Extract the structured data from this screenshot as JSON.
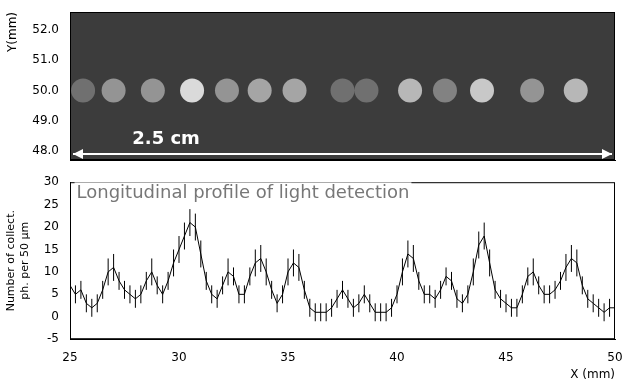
{
  "chart_data": [
    {
      "type": "image",
      "ylabel": "Y(mm)",
      "xlim": [
        25,
        50
      ],
      "ylim": [
        47.7,
        52.6
      ],
      "yticks": [
        {
          "value": 48,
          "label": "48.0"
        },
        {
          "value": 49,
          "label": "49.0"
        },
        {
          "value": 50,
          "label": "50.0"
        },
        {
          "value": 51,
          "label": "51.0"
        },
        {
          "value": 52,
          "label": "52.0"
        }
      ],
      "tick_labels": "y",
      "color": "#3c3c3c",
      "blobs": {
        "x": [
          25.6,
          27.0,
          28.8,
          30.6,
          32.2,
          33.7,
          35.3,
          37.5,
          38.6,
          40.6,
          42.2,
          43.9,
          46.2,
          48.2
        ],
        "y": [
          50.0,
          50.0,
          50.0,
          50.0,
          50.0,
          50.0,
          50.0,
          50.0,
          50.0,
          50.0,
          50.0,
          50.0,
          50.0,
          50.0
        ],
        "intensity": [
          0.3,
          0.5,
          0.5,
          0.9,
          0.5,
          0.6,
          0.6,
          0.3,
          0.3,
          0.7,
          0.4,
          0.8,
          0.5,
          0.7
        ]
      },
      "annotations": [
        {
          "text": "2.5 cm",
          "x": [
            25,
            50
          ],
          "y": 47.9
        }
      ]
    },
    {
      "type": "line",
      "xlabel": "X (mm)",
      "ylabel": "Number of collect. ph. per 50 µm",
      "xlim": [
        25,
        50
      ],
      "ylim": [
        -5,
        30
      ],
      "xticks": [
        25,
        30,
        35,
        40,
        45,
        50
      ],
      "yticks": [
        -5,
        0,
        5,
        10,
        15,
        20,
        25,
        30
      ],
      "grid": false,
      "color": "#000000",
      "x": [
        25,
        25.25,
        25.5,
        25.75,
        26,
        26.25,
        26.5,
        26.75,
        27,
        27.25,
        27.5,
        27.75,
        28,
        28.25,
        28.5,
        28.75,
        29,
        29.25,
        29.5,
        29.75,
        30,
        30.25,
        30.5,
        30.75,
        31,
        31.25,
        31.5,
        31.75,
        32,
        32.25,
        32.5,
        32.75,
        33,
        33.25,
        33.5,
        33.75,
        34,
        34.25,
        34.5,
        34.75,
        35,
        35.25,
        35.5,
        35.75,
        36,
        36.25,
        36.5,
        36.75,
        37,
        37.25,
        37.5,
        37.75,
        38,
        38.25,
        38.5,
        38.75,
        39,
        39.25,
        39.5,
        39.75,
        40,
        40.25,
        40.5,
        40.75,
        41,
        41.25,
        41.5,
        41.75,
        42,
        42.25,
        42.5,
        42.75,
        43,
        43.25,
        43.5,
        43.75,
        44,
        44.25,
        44.5,
        44.75,
        45,
        45.25,
        45.5,
        45.75,
        46,
        46.25,
        46.5,
        46.75,
        47,
        47.25,
        47.5,
        47.75,
        48,
        48.25,
        48.5,
        48.75,
        49,
        49.25,
        49.5,
        49.75,
        50
      ],
      "values": [
        7,
        5,
        6,
        3,
        2,
        3,
        6,
        10,
        11,
        8,
        6,
        5,
        4,
        5,
        8,
        10,
        7,
        5,
        8,
        12,
        15,
        18,
        21,
        20,
        14,
        8,
        5,
        4,
        7,
        10,
        9,
        5,
        5,
        9,
        12,
        13,
        10,
        6,
        3,
        5,
        10,
        12,
        11,
        6,
        2,
        1,
        1,
        1,
        2,
        4,
        6,
        4,
        2,
        3,
        5,
        3,
        1,
        1,
        1,
        2,
        5,
        10,
        14,
        13,
        8,
        5,
        5,
        4,
        6,
        9,
        8,
        4,
        3,
        5,
        10,
        16,
        18,
        12,
        6,
        4,
        3,
        2,
        2,
        5,
        9,
        10,
        7,
        5,
        5,
        6,
        8,
        11,
        13,
        12,
        7,
        4,
        3,
        2,
        1,
        2,
        2
      ],
      "errors": [
        2,
        2,
        2,
        2,
        2,
        2,
        2,
        3,
        3,
        2,
        2,
        2,
        2,
        2,
        2,
        3,
        2,
        2,
        2,
        3,
        3,
        3,
        3,
        3,
        3,
        2,
        2,
        2,
        2,
        3,
        2,
        2,
        2,
        2,
        3,
        3,
        3,
        2,
        2,
        2,
        3,
        3,
        3,
        2,
        2,
        2,
        2,
        2,
        2,
        2,
        2,
        2,
        2,
        2,
        2,
        2,
        2,
        2,
        2,
        2,
        2,
        3,
        3,
        3,
        2,
        2,
        2,
        2,
        2,
        2,
        2,
        2,
        2,
        2,
        3,
        3,
        3,
        3,
        2,
        2,
        2,
        2,
        2,
        2,
        2,
        3,
        2,
        2,
        2,
        2,
        2,
        3,
        3,
        3,
        2,
        2,
        2,
        2,
        2,
        2,
        2
      ],
      "annotations": [
        {
          "text": "Longitudinal profile of light detection",
          "x": 25.3,
          "y": 27.5
        }
      ]
    }
  ]
}
